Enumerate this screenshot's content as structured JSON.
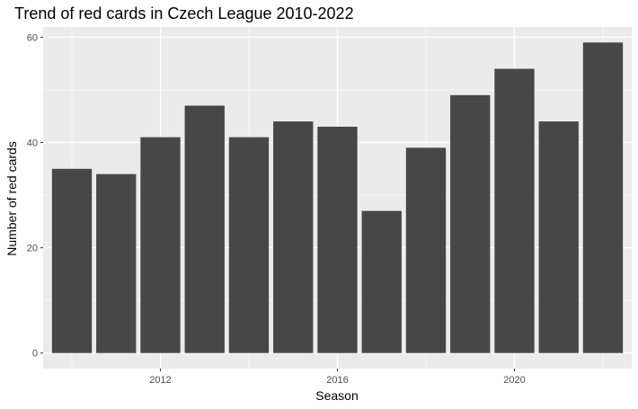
{
  "chart_data": {
    "type": "bar",
    "title": "Trend of red cards in Czech League 2010-2022",
    "xlabel": "Season",
    "ylabel": "Number of red cards",
    "categories": [
      2010,
      2011,
      2012,
      2013,
      2014,
      2015,
      2016,
      2017,
      2018,
      2019,
      2020,
      2021,
      2022
    ],
    "values": [
      35,
      34,
      41,
      47,
      41,
      44,
      43,
      27,
      39,
      49,
      54,
      44,
      59
    ],
    "xlim": [
      2009.35,
      2022.65
    ],
    "ylim": [
      -2.95,
      61.95
    ],
    "x_ticks": [
      2012,
      2016,
      2020
    ],
    "y_ticks": [
      0,
      20,
      40,
      60
    ],
    "grid": true,
    "colors": {
      "panel_background": "#ebebeb",
      "grid": "#ffffff",
      "bar": "#474747"
    }
  }
}
